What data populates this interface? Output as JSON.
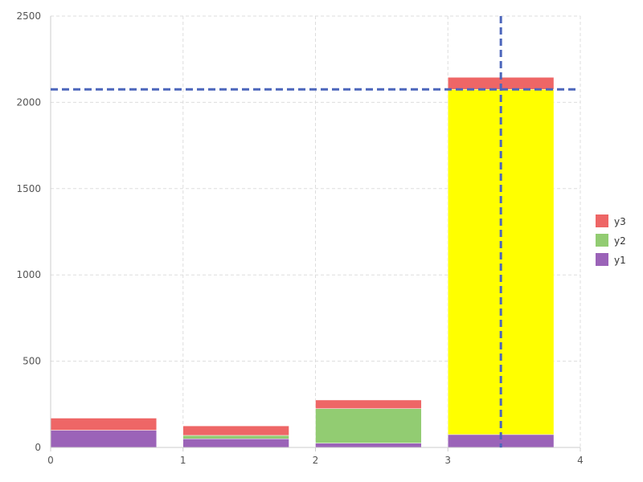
{
  "chart_data": {
    "type": "bar",
    "stacked": true,
    "title": "",
    "xlabel": "",
    "ylabel": "",
    "xlim": [
      0,
      4
    ],
    "ylim": [
      0,
      2500
    ],
    "x_ticks": [
      "0",
      "1",
      "2",
      "3",
      "4"
    ],
    "y_ticks": [
      "0",
      "500",
      "1000",
      "1500",
      "2000",
      "2500"
    ],
    "grid": true,
    "legend_position": "right",
    "bar_x": [
      0,
      1,
      2,
      3
    ],
    "bar_width": 0.8,
    "series": [
      {
        "name": "y1",
        "color": "#9b63b8",
        "values": [
          100,
          50,
          25,
          75
        ]
      },
      {
        "name": "y2",
        "color": "#92cc72",
        "values": [
          0,
          20,
          200,
          2000
        ]
      },
      {
        "name": "y3",
        "color": "#ee6666",
        "values": [
          70,
          55,
          50,
          70
        ]
      }
    ],
    "highlight": {
      "bar_index": 3,
      "series": "y2",
      "color": "#ffff00"
    },
    "crosshair": {
      "x": 3.4,
      "y": 2075,
      "color": "#4c66bb"
    },
    "legend_order": [
      "y3",
      "y2",
      "y1"
    ]
  }
}
